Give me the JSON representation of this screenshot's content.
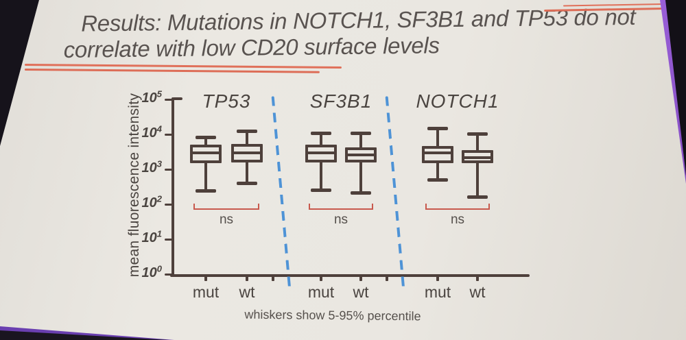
{
  "photo": {
    "backdrop_color": "#15121a",
    "edge_accent_color": "#7a3fc0"
  },
  "slide": {
    "background_color": "#e9e6e0",
    "title_line1": "Results: Mutations in NOTCH1, SF3B1 and TP53 do not",
    "title_line2": "correlate with low CD20 surface levels",
    "title_color": "#595350",
    "accent_line_color": "#e0705a"
  },
  "chart_data": {
    "type": "boxplot",
    "yscale": "log10",
    "ylim": [
      1,
      100000
    ],
    "ylabel": "mean fluorescence intensity",
    "ytick_exponent_base": "10",
    "ytick_exponents": [
      "5",
      "4",
      "3",
      "2",
      "1",
      "0"
    ],
    "xtick_labels": [
      "mut",
      "wt",
      "mut",
      "wt",
      "mut",
      "wt"
    ],
    "footnote": "whiskers show 5-95% percentile",
    "box_color": "#4e403b",
    "ink_color": "#4a4440",
    "separator_color": "#4e93d6",
    "significance_bracket_color": "#c8594d",
    "groups": [
      {
        "gene": "TP53",
        "significance": "ns",
        "boxes": [
          {
            "label": "mut",
            "whisker_low": 250,
            "q1": 1500,
            "median": 3000,
            "q3": 5000,
            "whisker_high": 8500
          },
          {
            "label": "wt",
            "whisker_low": 400,
            "q1": 1600,
            "median": 2900,
            "q3": 5200,
            "whisker_high": 12500
          }
        ]
      },
      {
        "gene": "SF3B1",
        "significance": "ns",
        "boxes": [
          {
            "label": "mut",
            "whisker_low": 260,
            "q1": 1550,
            "median": 3000,
            "q3": 5000,
            "whisker_high": 11000
          },
          {
            "label": "wt",
            "whisker_low": 220,
            "q1": 1600,
            "median": 2600,
            "q3": 4200,
            "whisker_high": 11000
          }
        ]
      },
      {
        "gene": "NOTCH1",
        "significance": "ns",
        "boxes": [
          {
            "label": "mut",
            "whisker_low": 500,
            "q1": 1500,
            "median": 2900,
            "q3": 4700,
            "whisker_high": 15000
          },
          {
            "label": "wt",
            "whisker_low": 165,
            "q1": 1500,
            "median": 2150,
            "q3": 3600,
            "whisker_high": 10500
          }
        ]
      }
    ]
  }
}
